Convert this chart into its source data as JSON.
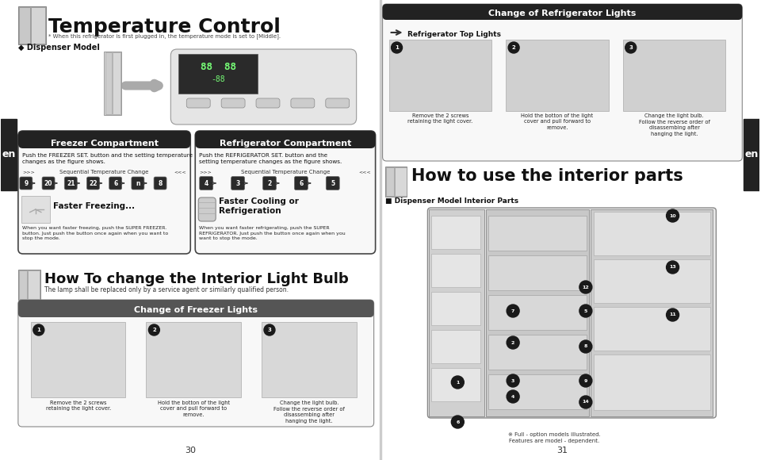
{
  "title": "Temperature Control",
  "subtitle": "* When this refrigerator is first plugged in, the temperature mode is set to [Middle].",
  "dispenser_label": "◆ Dispenser Model",
  "bg_color": "#ffffff",
  "page_numbers": [
    "30",
    "31"
  ],
  "freezer_box": {
    "title": "Freezer Compartment",
    "body_text": "Push the FREEZER SET. button and the setting temperature\nchanges as the figure shows.",
    "seq_label": "Sequential Temperature Change",
    "seq_left": ">>>",
    "seq_right": "<<<",
    "temps": [
      "9",
      "20",
      "21",
      "22",
      "6",
      "n",
      "8"
    ],
    "faster_label": "Faster Freezing...",
    "footer": "When you want faster freezing, push the SUPER FREEZER.\nbutton. Just push the button once again when you want to\nstop the mode."
  },
  "fridge_box": {
    "title": "Refrigerator Compartment",
    "body_text": "Push the REFRIGERATOR SET. button and the\nsetting temperature changes as the figure shows.",
    "seq_label": "Sequential Temperature Change",
    "seq_left": ">>>",
    "seq_right": "<<<",
    "temps": [
      "4",
      "3",
      "2",
      "6",
      "5"
    ],
    "faster_label": "Faster Cooling or\nRefrigeration",
    "footer": "When you want faster refrigerating, push the SUPER\nREFRIGERATOR. Just push the button once again when you\nwant to stop the mode."
  },
  "right_section_title": "Change of Refrigerator Lights",
  "right_label": "Refrigerator Top Lights",
  "right_img_captions": [
    "Remove the 2 screws\nretaining the light cover.",
    "Hold the botton of the light\ncover and pull forward to\nremove.",
    "Change the light bulb.\nFollow the reverse order of\ndisassembing after\nhanging the light."
  ],
  "bottom_left_title": "How To change the Interior Light Bulb",
  "bottom_left_sub": "The lamp shall be replaced only by a service agent or similarly qualified person.",
  "change_freezer_title": "Change of Freezer Lights",
  "freezer_img_captions": [
    "Remove the 2 screws\nretaining the light cover.",
    "Hold the botton of the light\ncover and pull forward to\nremove.",
    "Change the light bulb.\nFollow the reverse order of\ndisassembing after\nhanging the light."
  ],
  "how_to_title": "How to use the interior parts",
  "dispenser_interior": "■ Dispenser Model Interior Parts",
  "full_option": "※ Full - option models illustrated.\nFeatures are model - dependent.",
  "en_label": "en",
  "black_bar_color": "#222222",
  "dark_header_color": "#222222",
  "mid_header_color": "#555555"
}
